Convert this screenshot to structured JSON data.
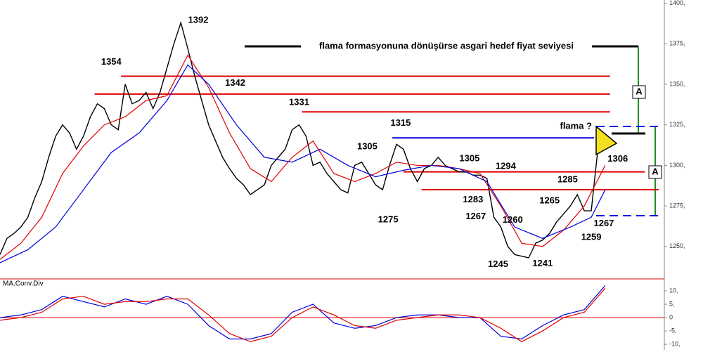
{
  "chart_data": [
    {
      "type": "line",
      "ylim": [
        1230,
        1402
      ],
      "xlim": [
        0,
        95
      ],
      "yticks": [
        {
          "value": 1400,
          "label": "1400,"
        },
        {
          "value": 1375,
          "label": "1375,"
        },
        {
          "value": 1350,
          "label": "1350,"
        },
        {
          "value": 1325,
          "label": "1325,"
        },
        {
          "value": 1300,
          "label": "1300,"
        },
        {
          "value": 1275,
          "label": "1275,"
        },
        {
          "value": 1250,
          "label": "1250,"
        }
      ],
      "x": [
        0,
        1,
        2,
        3,
        4,
        5,
        6,
        7,
        8,
        9,
        10,
        11,
        12,
        13,
        14,
        15,
        16,
        17,
        18,
        19,
        20,
        21,
        22,
        23,
        24,
        25,
        26,
        27,
        28,
        29,
        30,
        31,
        32,
        33,
        34,
        35,
        36,
        37,
        38,
        39,
        40,
        41,
        42,
        43,
        44,
        45,
        46,
        47,
        48,
        49,
        50,
        51,
        52,
        53,
        54,
        55,
        56,
        57,
        58,
        59,
        60,
        61,
        62,
        63,
        64,
        65,
        66,
        67,
        68,
        69,
        70,
        71,
        72,
        73,
        74,
        75,
        76,
        77,
        78,
        79,
        80,
        81,
        82,
        83,
        84,
        85,
        86,
        87
      ],
      "series": [
        {
          "color": "#000000",
          "values": [
            1245,
            1255,
            1258,
            1262,
            1268,
            1280,
            1290,
            1305,
            1318,
            1325,
            1320,
            1310,
            1318,
            1330,
            1338,
            1335,
            1325,
            1322,
            1350,
            1338,
            1340,
            1345,
            1335,
            1345,
            1360,
            1375,
            1388,
            1372,
            1355,
            1340,
            1325,
            1315,
            1305,
            1298,
            1292,
            1288,
            1282,
            1285,
            1288,
            1300,
            1305,
            1310,
            1322,
            1325,
            1318,
            1300,
            1302,
            1295,
            1290,
            1285,
            1283,
            1300,
            1302,
            1295,
            1288,
            1285,
            1300,
            1313,
            1310,
            1298,
            1290,
            1298,
            1300,
            1305,
            1300,
            1298,
            1296,
            1296,
            1294,
            1294,
            1292,
            1268,
            1262,
            1250,
            1245,
            1244,
            1243,
            1252,
            1254,
            1258,
            1265,
            1270,
            1275,
            1282,
            1272,
            1272,
            1312,
            1316
          ]
        },
        {
          "color": "#e00000",
          "x": [
            0,
            3,
            6,
            9,
            12,
            15,
            18,
            21,
            24,
            27,
            30,
            33,
            36,
            39,
            42,
            45,
            48,
            51,
            54,
            57,
            60,
            63,
            66,
            69,
            72,
            75,
            78,
            81,
            84,
            87
          ],
          "values": [
            1242,
            1252,
            1268,
            1295,
            1312,
            1325,
            1330,
            1340,
            1343,
            1368,
            1348,
            1320,
            1298,
            1290,
            1305,
            1315,
            1295,
            1290,
            1295,
            1302,
            1300,
            1300,
            1298,
            1295,
            1275,
            1252,
            1250,
            1260,
            1275,
            1300
          ]
        },
        {
          "color": "#0000dd",
          "x": [
            0,
            4,
            8,
            12,
            16,
            20,
            24,
            27,
            30,
            34,
            38,
            42,
            46,
            50,
            54,
            58,
            62,
            66,
            70,
            74,
            78,
            82,
            85,
            87
          ],
          "values": [
            1240,
            1248,
            1262,
            1285,
            1308,
            1320,
            1340,
            1362,
            1350,
            1325,
            1305,
            1302,
            1310,
            1300,
            1293,
            1297,
            1300,
            1298,
            1290,
            1262,
            1255,
            1262,
            1268,
            1285
          ]
        }
      ],
      "levels": [
        {
          "value": 1355,
          "from": 17.4,
          "to": 87.7,
          "color": "#e00000"
        },
        {
          "value": 1344,
          "from": 13.6,
          "to": 87.7,
          "color": "#e00000"
        },
        {
          "value": 1333,
          "from": 43.4,
          "to": 87.7,
          "color": "#e00000"
        },
        {
          "value": 1317,
          "from": 56.4,
          "to": 85.4,
          "color": "#0000dd"
        },
        {
          "value": 1296,
          "from": 58,
          "to": 92.7,
          "color": "#e00000"
        },
        {
          "value": 1285,
          "from": 60.6,
          "to": 94.7,
          "color": "#e00000"
        }
      ],
      "dashed_levels": [
        {
          "value": 1324,
          "from": 85.7,
          "to": 94.7
        },
        {
          "value": 1269,
          "from": 85.7,
          "to": 95
        }
      ],
      "annotations": [
        {
          "value": 1392,
          "x": 28.5
        },
        {
          "value": 1354,
          "x": 16
        },
        {
          "value": 1342,
          "x": 32.8
        },
        {
          "value": 1331,
          "x": 43
        },
        {
          "value": 1315,
          "x": 57.6
        },
        {
          "value": 1305,
          "x": 52.8
        },
        {
          "value": 1305,
          "x": 67.5
        },
        {
          "value": 1294,
          "x": 72.7
        },
        {
          "value": 1285,
          "x": 81.6
        },
        {
          "value": 1283,
          "x": 68
        },
        {
          "value": 1275,
          "x": 55.8
        },
        {
          "value": 1267,
          "x": 68.4
        },
        {
          "value": 1260,
          "x": 73.7
        },
        {
          "value": 1265,
          "x": 79
        },
        {
          "value": 1245,
          "x": 71.6
        },
        {
          "value": 1241,
          "x": 78
        },
        {
          "value": 1267,
          "x": 86
        },
        {
          "value": 1259,
          "x": 85
        },
        {
          "value": 1306,
          "x": 88
        }
      ],
      "headline": "flama formasyonuna dönüşürse asgari hedef fiyat seviyesi",
      "pennant": "flama ?",
      "targets": [
        "A",
        "A"
      ]
    },
    {
      "type": "line",
      "title": "MA.Conv.Div",
      "ylim": [
        -11.3,
        14.5
      ],
      "xlim": [
        0,
        95
      ],
      "yticks": [
        {
          "value": 10,
          "label": "10,"
        },
        {
          "value": 5,
          "label": "5,"
        },
        0,
        {
          "value": -5,
          "label": "-5,"
        },
        {
          "value": -10,
          "label": "-10,"
        }
      ],
      "x": [
        0,
        3,
        6,
        9,
        12,
        15,
        18,
        21,
        24,
        27,
        30,
        33,
        36,
        39,
        42,
        45,
        48,
        51,
        54,
        57,
        60,
        63,
        66,
        69,
        72,
        75,
        78,
        81,
        84,
        87
      ],
      "series": [
        {
          "color": "#0000dd",
          "values": [
            0,
            1,
            3,
            8,
            6,
            4,
            7,
            5,
            8,
            5,
            -3,
            -8,
            -8,
            -6,
            2,
            5,
            -2,
            -4,
            -3,
            0,
            1,
            1,
            0,
            0,
            -7,
            -8,
            -3,
            1,
            3,
            12
          ]
        },
        {
          "color": "#e00000",
          "values": [
            -1,
            0,
            2,
            7,
            8,
            5,
            6,
            6,
            7,
            7,
            1,
            -6,
            -9,
            -7,
            0,
            4,
            1,
            -3,
            -4,
            -1,
            0,
            1,
            1,
            0,
            -4,
            -9,
            -5,
            0,
            2,
            11
          ]
        }
      ]
    }
  ]
}
